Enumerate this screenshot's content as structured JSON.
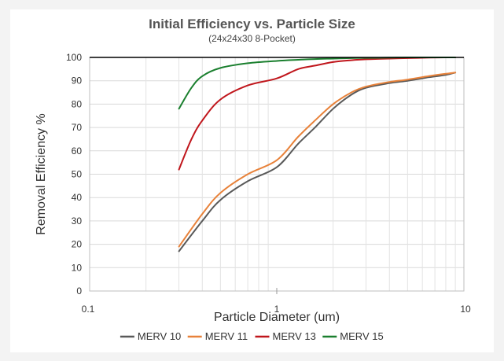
{
  "chart_data": {
    "type": "line",
    "title": "Initial Efficiency vs. Particle Size",
    "subtitle": "(24x24x30 8-Pocket)",
    "xlabel": "Particle Diameter (um)",
    "ylabel": "Removal Efficiency %",
    "x_scale": "log",
    "xlim": [
      0.1,
      10
    ],
    "ylim": [
      0,
      100
    ],
    "y_ticks": [
      0,
      10,
      20,
      30,
      40,
      50,
      60,
      70,
      80,
      90,
      100
    ],
    "x_tick_labels": [
      {
        "value": 0.1,
        "label": "0.1"
      },
      {
        "value": 1,
        "label": "1"
      },
      {
        "value": 10,
        "label": "10"
      }
    ],
    "grid": true,
    "legend_position": "bottom",
    "series": [
      {
        "name": "MERV 10",
        "color": "#595959",
        "x": [
          0.3,
          0.4,
          0.5,
          0.7,
          1.0,
          1.3,
          1.6,
          2.0,
          2.5,
          3.0,
          4.0,
          5.0,
          6.5,
          8.0,
          9.0
        ],
        "y": [
          17,
          30,
          39,
          47,
          53,
          63,
          70,
          78,
          84,
          87,
          89,
          90,
          91.5,
          92.5,
          93.5
        ]
      },
      {
        "name": "MERV 11",
        "color": "#e8823a",
        "x": [
          0.3,
          0.4,
          0.5,
          0.7,
          1.0,
          1.3,
          1.6,
          2.0,
          2.5,
          3.0,
          4.0,
          5.0,
          6.5,
          8.0,
          9.0
        ],
        "y": [
          19,
          33,
          42,
          50,
          56,
          66,
          73,
          80,
          85,
          87.5,
          89.5,
          90.5,
          92,
          93,
          93.5
        ]
      },
      {
        "name": "MERV 13",
        "color": "#c0161c",
        "x": [
          0.3,
          0.35,
          0.4,
          0.5,
          0.7,
          1.0,
          1.3,
          1.6,
          2.0,
          2.5,
          3.0,
          4.0,
          5.0,
          6.5,
          8.0,
          9.0
        ],
        "y": [
          52,
          65,
          73,
          82,
          88,
          91,
          95,
          96.5,
          98,
          98.8,
          99.2,
          99.5,
          99.7,
          99.9,
          100,
          100
        ]
      },
      {
        "name": "MERV 15",
        "color": "#1a7f2e",
        "x": [
          0.3,
          0.35,
          0.4,
          0.5,
          0.7,
          1.0,
          1.3,
          1.6,
          2.0,
          2.5,
          3.0,
          4.0,
          5.0,
          6.5,
          8.0,
          9.0
        ],
        "y": [
          78,
          87,
          92,
          95.5,
          97.5,
          98.5,
          99,
          99.3,
          99.5,
          99.7,
          99.8,
          99.9,
          100,
          100,
          100,
          100
        ]
      }
    ]
  }
}
